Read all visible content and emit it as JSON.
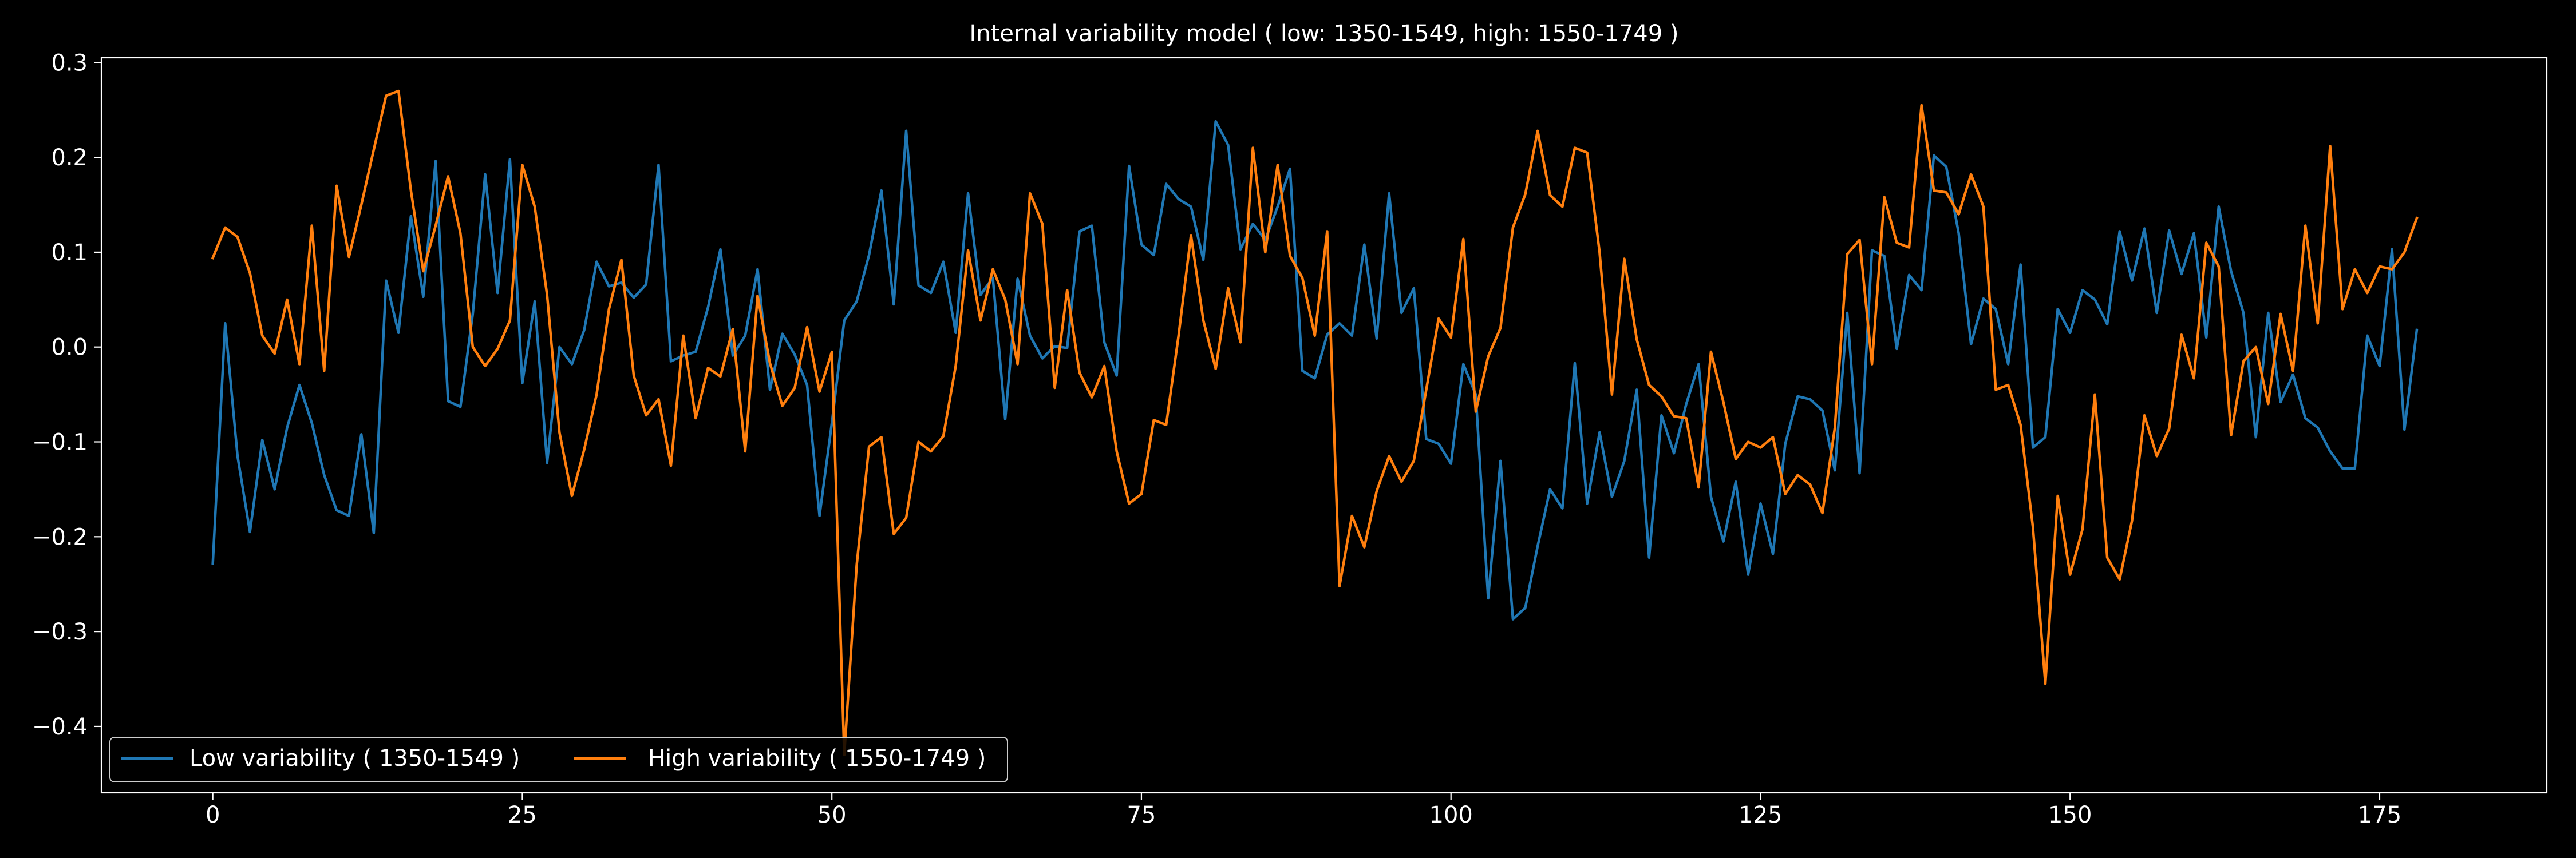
{
  "chart_data": {
    "type": "line",
    "title": "Internal variability model ( low: 1350-1549, high: 1550-1749 )",
    "xlabel": "",
    "ylabel": "",
    "xlim": [
      -9,
      188.5
    ],
    "ylim": [
      -0.47,
      0.305
    ],
    "x_ticks": [
      0,
      25,
      50,
      75,
      100,
      125,
      150,
      175
    ],
    "y_ticks": [
      -0.4,
      -0.3,
      -0.2,
      -0.1,
      0.0,
      0.1,
      0.2,
      0.3
    ],
    "y_tick_labels": [
      "−0.4",
      "−0.3",
      "−0.2",
      "−0.1",
      "0.0",
      "0.1",
      "0.2",
      "0.3"
    ],
    "grid": false,
    "legend_position": "lower-left",
    "background": "#000000",
    "axis_color": "#ffffff",
    "series": [
      {
        "name": "Low variability ( 1350-1549 )",
        "color": "#1f77b4",
        "x_start": 0,
        "values": [
          -0.228,
          0.025,
          -0.115,
          -0.195,
          -0.098,
          -0.15,
          -0.085,
          -0.04,
          -0.08,
          -0.135,
          -0.172,
          -0.178,
          -0.092,
          -0.196,
          0.07,
          0.015,
          0.138,
          0.053,
          0.196,
          -0.057,
          -0.063,
          0.035,
          0.182,
          0.057,
          0.198,
          -0.038,
          0.048,
          -0.122,
          0.0,
          -0.018,
          0.018,
          0.09,
          0.064,
          0.068,
          0.052,
          0.066,
          0.192,
          -0.015,
          -0.009,
          -0.005,
          0.042,
          0.103,
          -0.009,
          0.012,
          0.082,
          -0.045,
          0.014,
          -0.008,
          -0.04,
          -0.178,
          -0.08,
          0.028,
          0.048,
          0.097,
          0.165,
          0.045,
          0.228,
          0.065,
          0.057,
          0.09,
          0.015,
          0.162,
          0.055,
          0.073,
          -0.076,
          0.072,
          0.012,
          -0.012,
          0.001,
          -0.001,
          0.122,
          0.128,
          0.005,
          -0.03,
          0.191,
          0.108,
          0.097,
          0.172,
          0.156,
          0.148,
          0.092,
          0.238,
          0.213,
          0.103,
          0.13,
          0.113,
          0.148,
          0.188,
          -0.025,
          -0.033,
          0.013,
          0.025,
          0.012,
          0.108,
          0.009,
          0.162,
          0.036,
          0.062,
          -0.097,
          -0.102,
          -0.123,
          -0.018,
          -0.05,
          -0.265,
          -0.12,
          -0.287,
          -0.275,
          -0.21,
          -0.15,
          -0.17,
          -0.017,
          -0.165,
          -0.09,
          -0.158,
          -0.12,
          -0.045,
          -0.222,
          -0.072,
          -0.112,
          -0.06,
          -0.018,
          -0.158,
          -0.205,
          -0.142,
          -0.24,
          -0.165,
          -0.218,
          -0.102,
          -0.052,
          -0.055,
          -0.067,
          -0.13,
          0.036,
          -0.133,
          0.102,
          0.096,
          -0.002,
          0.076,
          0.06,
          0.202,
          0.19,
          0.12,
          0.003,
          0.051,
          0.04,
          -0.018,
          0.087,
          -0.106,
          -0.095,
          0.04,
          0.015,
          0.06,
          0.05,
          0.024,
          0.122,
          0.07,
          0.125,
          0.036,
          0.123,
          0.077,
          0.12,
          0.01,
          0.148,
          0.08,
          0.036,
          -0.095,
          0.036,
          -0.058,
          -0.029,
          -0.075,
          -0.085,
          -0.11,
          -0.128,
          -0.128,
          0.012,
          -0.02,
          0.103,
          -0.087,
          0.018
        ]
      },
      {
        "name": "High variability ( 1550-1749 )",
        "color": "#ff7f0e",
        "x_start": 0,
        "values": [
          0.094,
          0.126,
          0.116,
          0.078,
          0.012,
          -0.007,
          0.05,
          -0.018,
          0.128,
          -0.025,
          0.17,
          0.095,
          0.15,
          0.208,
          0.265,
          0.27,
          0.165,
          0.08,
          0.128,
          0.18,
          0.12,
          0.0,
          -0.02,
          -0.002,
          0.028,
          0.192,
          0.148,
          0.055,
          -0.09,
          -0.157,
          -0.108,
          -0.05,
          0.04,
          0.092,
          -0.03,
          -0.072,
          -0.055,
          -0.125,
          0.012,
          -0.075,
          -0.022,
          -0.031,
          0.019,
          -0.11,
          0.054,
          -0.017,
          -0.062,
          -0.043,
          0.021,
          -0.047,
          -0.005,
          -0.43,
          -0.23,
          -0.105,
          -0.095,
          -0.197,
          -0.18,
          -0.1,
          -0.11,
          -0.094,
          -0.02,
          0.102,
          0.028,
          0.082,
          0.05,
          -0.018,
          0.162,
          0.13,
          -0.043,
          0.06,
          -0.027,
          -0.053,
          -0.02,
          -0.11,
          -0.165,
          -0.155,
          -0.077,
          -0.082,
          0.012,
          0.118,
          0.028,
          -0.023,
          0.062,
          0.005,
          0.21,
          0.1,
          0.192,
          0.096,
          0.073,
          0.012,
          0.122,
          -0.252,
          -0.178,
          -0.211,
          -0.152,
          -0.115,
          -0.142,
          -0.12,
          -0.045,
          0.03,
          0.01,
          0.114,
          -0.068,
          -0.01,
          0.02,
          0.126,
          0.161,
          0.228,
          0.16,
          0.148,
          0.21,
          0.205,
          0.1,
          -0.05,
          0.093,
          0.008,
          -0.04,
          -0.052,
          -0.073,
          -0.075,
          -0.148,
          -0.005,
          -0.058,
          -0.118,
          -0.1,
          -0.106,
          -0.095,
          -0.155,
          -0.135,
          -0.145,
          -0.175,
          -0.085,
          0.098,
          0.113,
          -0.018,
          0.158,
          0.11,
          0.105,
          0.255,
          0.165,
          0.163,
          0.14,
          0.182,
          0.148,
          -0.045,
          -0.04,
          -0.082,
          -0.19,
          -0.355,
          -0.157,
          -0.24,
          -0.192,
          -0.05,
          -0.222,
          -0.245,
          -0.183,
          -0.072,
          -0.115,
          -0.086,
          0.013,
          -0.033,
          0.11,
          0.085,
          -0.093,
          -0.015,
          0.0,
          -0.06,
          0.035,
          -0.025,
          0.128,
          0.025,
          0.212,
          0.04,
          0.082,
          0.057,
          0.085,
          0.082,
          0.1,
          0.136
        ]
      }
    ]
  }
}
